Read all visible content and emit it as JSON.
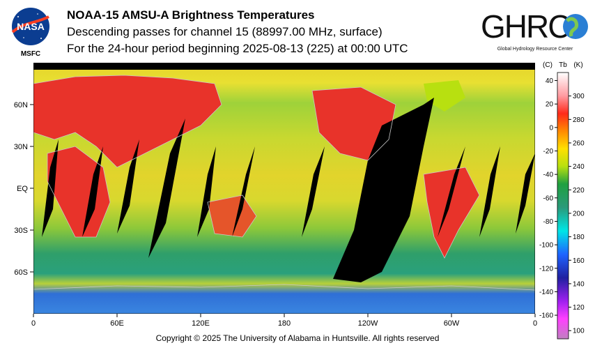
{
  "header": {
    "title": "NOAA-15 AMSU-A Brightness Temperatures",
    "subtitle": "Descending passes for channel 15 (88997.00 MHz, surface)",
    "period": "For the 24-hour period beginning 2025-08-13 (225) at 00:00 UTC"
  },
  "logos": {
    "nasa_text": "NASA",
    "msfc_text": "MSFC",
    "ghrc_text": "GHRC",
    "ghrc_subtitle": "Global Hydrology Resource Center"
  },
  "map": {
    "x_ticks": [
      {
        "lon": 0,
        "label": "0"
      },
      {
        "lon": 60,
        "label": "60E"
      },
      {
        "lon": 120,
        "label": "120E"
      },
      {
        "lon": 180,
        "label": "180"
      },
      {
        "lon": 240,
        "label": "120W"
      },
      {
        "lon": 300,
        "label": "60W"
      },
      {
        "lon": 360,
        "label": "0"
      }
    ],
    "y_ticks": [
      {
        "lat": 60,
        "label": "60N"
      },
      {
        "lat": 30,
        "label": "30N"
      },
      {
        "lat": 0,
        "label": "EQ"
      },
      {
        "lat": -30,
        "label": "30S"
      },
      {
        "lat": -60,
        "label": "60S"
      }
    ],
    "colors": {
      "ocean_green": "#2f9f6a",
      "land_hot": "#e8332a",
      "warm_yellow": "#e6d32a",
      "polar_blue": "#2f6fd6",
      "gap": "#000000",
      "coast": "#c8c8c8"
    }
  },
  "colorbar": {
    "header_c": "(C)",
    "header_tb": "Tb",
    "header_k": "(K)",
    "celsius_ticks": [
      {
        "c": 40,
        "label": "40"
      },
      {
        "c": 20,
        "label": "20"
      },
      {
        "c": 0,
        "label": "0"
      },
      {
        "c": -20,
        "label": "-20"
      },
      {
        "c": -40,
        "label": "-40"
      },
      {
        "c": -60,
        "label": "-60"
      },
      {
        "c": -80,
        "label": "-80"
      },
      {
        "c": -100,
        "label": "-100"
      },
      {
        "c": -120,
        "label": "-120"
      },
      {
        "c": -140,
        "label": "-140"
      },
      {
        "c": -160,
        "label": "-160"
      }
    ],
    "kelvin_ticks": [
      {
        "k": 300,
        "label": "300"
      },
      {
        "k": 280,
        "label": "280"
      },
      {
        "k": 260,
        "label": "260"
      },
      {
        "k": 240,
        "label": "240"
      },
      {
        "k": 220,
        "label": "220"
      },
      {
        "k": 200,
        "label": "200"
      },
      {
        "k": 180,
        "label": "180"
      },
      {
        "k": 160,
        "label": "160"
      },
      {
        "k": 140,
        "label": "140"
      },
      {
        "k": 120,
        "label": "120"
      },
      {
        "k": 100,
        "label": "100"
      }
    ],
    "k_range": [
      93,
      320
    ],
    "stops": [
      {
        "k": 320,
        "color": "#ffffff"
      },
      {
        "k": 300,
        "color": "#ff9aa0"
      },
      {
        "k": 285,
        "color": "#ff2a1a"
      },
      {
        "k": 270,
        "color": "#ff8a00"
      },
      {
        "k": 255,
        "color": "#ffe000"
      },
      {
        "k": 240,
        "color": "#b8e010"
      },
      {
        "k": 225,
        "color": "#20a040"
      },
      {
        "k": 205,
        "color": "#2a9a7a"
      },
      {
        "k": 185,
        "color": "#00e6e6"
      },
      {
        "k": 165,
        "color": "#1e64ff"
      },
      {
        "k": 145,
        "color": "#2020a0"
      },
      {
        "k": 125,
        "color": "#a020f0"
      },
      {
        "k": 110,
        "color": "#ff40ff"
      },
      {
        "k": 93,
        "color": "#c080c0"
      }
    ]
  },
  "footer": {
    "copyright": "Copyright © 2025 The University of Alabama in Huntsville.  All rights reserved"
  }
}
